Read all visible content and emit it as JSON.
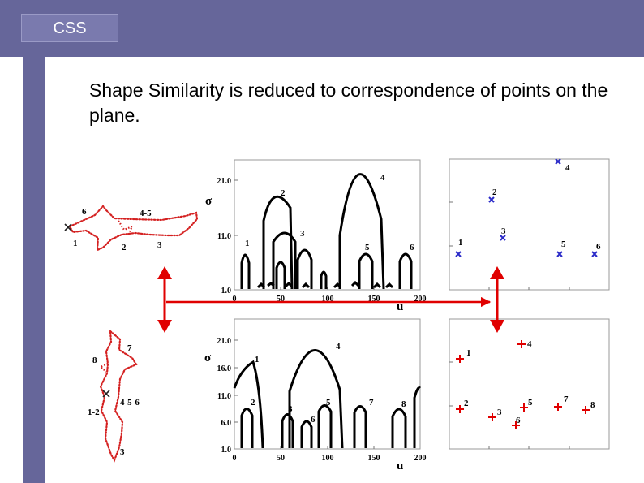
{
  "header": {
    "tag": "CSS"
  },
  "main": {
    "headline": "Shape Similarity is reduced to correspondence of points on the plane."
  },
  "colors": {
    "bar": "#66669a",
    "arrow": "#e00000",
    "cross": "#2a2ac8",
    "plus": "#e00000"
  },
  "shape1": {
    "labels": [
      "6",
      "4-5",
      "1",
      "2",
      "3"
    ]
  },
  "shape2": {
    "labels": [
      "7",
      "8",
      "1-2",
      "4-5-6",
      "3"
    ]
  },
  "css1": {
    "sigma_label": "σ",
    "u_label": "u",
    "y_ticks": [
      "21.0",
      "11.0",
      "1.0"
    ],
    "x_ticks": [
      "0",
      "50",
      "100",
      "150",
      "200"
    ],
    "peak_labels": [
      "1",
      "2",
      "3",
      "4",
      "5",
      "6"
    ]
  },
  "css2": {
    "sigma_label": "σ",
    "u_label": "u",
    "y_ticks": [
      "21.0",
      "16.0",
      "11.0",
      "6.0",
      "1.0"
    ],
    "x_ticks": [
      "0",
      "50",
      "100",
      "150",
      "200"
    ],
    "peak_labels": [
      "1",
      "2",
      "3",
      "4",
      "5",
      "6",
      "7",
      "8"
    ]
  },
  "points1": {
    "marker": "x-icon",
    "labels": [
      "4",
      "2",
      "3",
      "1",
      "5",
      "6"
    ]
  },
  "points2": {
    "marker": "plus-icon",
    "labels": [
      "1",
      "4",
      "2",
      "3",
      "5",
      "6",
      "7",
      "8"
    ]
  }
}
